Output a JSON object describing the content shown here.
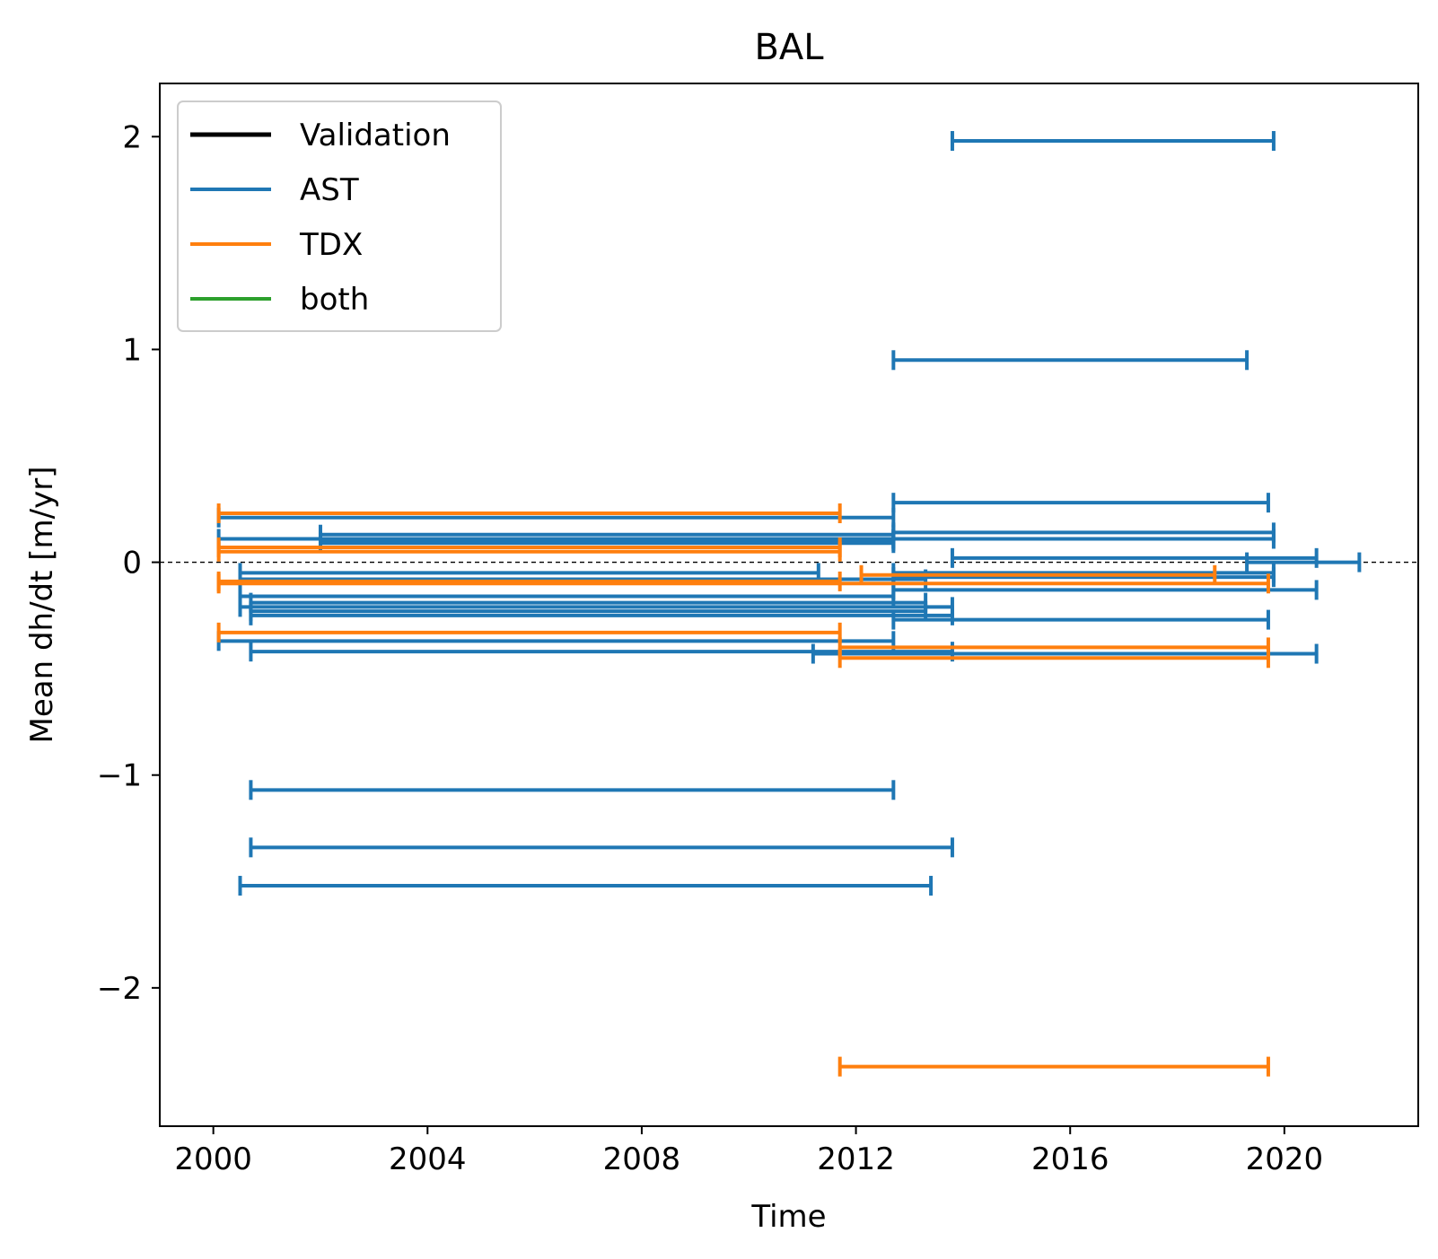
{
  "chart_data": {
    "type": "line",
    "title": "BAL",
    "xlabel": "Time",
    "ylabel": "Mean dh/dt [m/yr]",
    "xlim": [
      1999,
      2022.5
    ],
    "ylim": [
      -2.65,
      2.25
    ],
    "x_ticks": [
      2000,
      2004,
      2008,
      2012,
      2016,
      2020
    ],
    "y_ticks": [
      2,
      1,
      0,
      -1,
      -2
    ],
    "y_tick_labels": [
      "2",
      "1",
      "0",
      "−1",
      "−2"
    ],
    "reference_line": {
      "y": 0,
      "style": "dashed",
      "color": "#000000"
    },
    "legend": {
      "placement": "upper-left",
      "entries": [
        {
          "label": "Validation",
          "color": "#000000"
        },
        {
          "label": "AST",
          "color": "#1f77b4"
        },
        {
          "label": "TDX",
          "color": "#ff7f0e"
        },
        {
          "label": "both",
          "color": "#2ca02c"
        }
      ]
    },
    "series": [
      {
        "name": "AST",
        "color": "#1f77b4",
        "intervals": [
          {
            "start": 2013.8,
            "end": 2019.8,
            "value": 1.98
          },
          {
            "start": 2012.7,
            "end": 2019.3,
            "value": 0.95
          },
          {
            "start": 2012.7,
            "end": 2019.7,
            "value": 0.28
          },
          {
            "start": 2000.1,
            "end": 2012.7,
            "value": 0.21
          },
          {
            "start": 2012.7,
            "end": 2019.8,
            "value": 0.14
          },
          {
            "start": 2000.1,
            "end": 2012.7,
            "value": 0.11
          },
          {
            "start": 2002.0,
            "end": 2012.7,
            "value": 0.13
          },
          {
            "start": 2002.0,
            "end": 2012.7,
            "value": 0.1
          },
          {
            "start": 2002.0,
            "end": 2012.7,
            "value": 0.09
          },
          {
            "start": 2012.7,
            "end": 2019.8,
            "value": 0.11
          },
          {
            "start": 2019.3,
            "end": 2021.4,
            "value": 0.0
          },
          {
            "start": 2013.8,
            "end": 2020.6,
            "value": 0.02
          },
          {
            "start": 2000.5,
            "end": 2011.3,
            "value": -0.05
          },
          {
            "start": 2000.5,
            "end": 2013.3,
            "value": -0.08
          },
          {
            "start": 2012.7,
            "end": 2019.8,
            "value": -0.05
          },
          {
            "start": 2012.7,
            "end": 2019.8,
            "value": -0.07
          },
          {
            "start": 2012.7,
            "end": 2020.6,
            "value": -0.13
          },
          {
            "start": 2000.5,
            "end": 2012.7,
            "value": -0.16
          },
          {
            "start": 2000.7,
            "end": 2013.3,
            "value": -0.19
          },
          {
            "start": 2000.5,
            "end": 2013.8,
            "value": -0.21
          },
          {
            "start": 2000.7,
            "end": 2013.3,
            "value": -0.23
          },
          {
            "start": 2000.7,
            "end": 2013.8,
            "value": -0.25
          },
          {
            "start": 2012.7,
            "end": 2019.7,
            "value": -0.27
          },
          {
            "start": 2000.1,
            "end": 2012.7,
            "value": -0.37
          },
          {
            "start": 2000.7,
            "end": 2013.8,
            "value": -0.42
          },
          {
            "start": 2011.2,
            "end": 2020.6,
            "value": -0.43
          },
          {
            "start": 2000.7,
            "end": 2012.7,
            "value": -1.07
          },
          {
            "start": 2000.7,
            "end": 2013.8,
            "value": -1.34
          },
          {
            "start": 2000.5,
            "end": 2013.4,
            "value": -1.52
          }
        ]
      },
      {
        "name": "TDX",
        "color": "#ff7f0e",
        "intervals": [
          {
            "start": 2000.1,
            "end": 2011.7,
            "value": 0.23
          },
          {
            "start": 2000.1,
            "end": 2011.7,
            "value": 0.07
          },
          {
            "start": 2000.1,
            "end": 2011.7,
            "value": 0.05
          },
          {
            "start": 2000.1,
            "end": 2011.7,
            "value": -0.09
          },
          {
            "start": 2000.1,
            "end": 2019.7,
            "value": -0.1
          },
          {
            "start": 2012.1,
            "end": 2018.7,
            "value": -0.06
          },
          {
            "start": 2000.1,
            "end": 2011.7,
            "value": -0.33
          },
          {
            "start": 2011.7,
            "end": 2019.7,
            "value": -0.4
          },
          {
            "start": 2011.7,
            "end": 2019.7,
            "value": -0.45
          },
          {
            "start": 2011.7,
            "end": 2019.7,
            "value": -2.37
          }
        ]
      }
    ]
  }
}
